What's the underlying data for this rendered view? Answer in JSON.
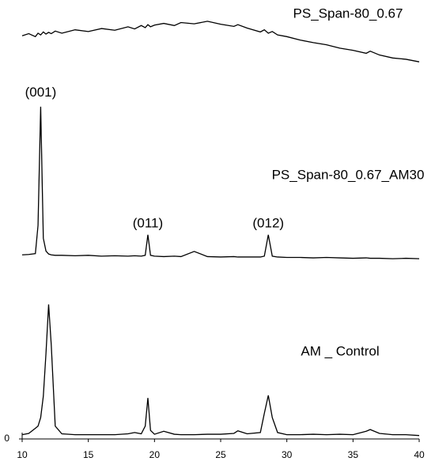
{
  "chart_data": {
    "type": "line",
    "x": [
      10,
      10.5,
      11,
      11.2,
      11.4,
      11.6,
      11.8,
      12,
      12.2,
      12.5,
      13,
      14,
      15,
      16,
      17,
      18,
      18.5,
      19,
      19.3,
      19.5,
      19.7,
      20,
      20.7,
      21.5,
      22,
      23,
      24,
      25,
      26,
      26.3,
      27,
      28,
      28.3,
      28.6,
      28.9,
      29.3,
      30,
      31,
      32,
      33,
      34,
      35,
      36,
      36.3,
      37,
      38,
      39,
      40
    ],
    "series": [
      {
        "name": "PS_Span-80_0.67",
        "color": "#000000",
        "values": [
          94.4,
          94.9,
          94.2,
          95,
          94.6,
          95.3,
          94.8,
          95.2,
          94.9,
          95.5,
          95,
          95.8,
          95.4,
          96.1,
          95.7,
          96.5,
          96,
          96.8,
          96.3,
          97,
          96.5,
          96.9,
          97.3,
          96.8,
          97.5,
          97.2,
          97.8,
          97.1,
          96.6,
          97,
          96.2,
          95.3,
          95.8,
          95,
          95.4,
          94.6,
          94.2,
          93.4,
          92.8,
          92.3,
          91.5,
          91,
          90.3,
          90.8,
          89.9,
          89.2,
          88.9,
          88.3
        ]
      },
      {
        "name": "PS_Span-80_0.67_AM30",
        "color": "#000000",
        "values": [
          43.1,
          43.2,
          43.4,
          50,
          77.8,
          47,
          44,
          43.3,
          43.1,
          43,
          43,
          42.9,
          43,
          42.8,
          42.9,
          42.8,
          42.9,
          42.8,
          43,
          47.8,
          43,
          42.8,
          42.7,
          42.8,
          42.7,
          43.9,
          42.7,
          42.6,
          42.7,
          42.6,
          42.6,
          42.6,
          42.8,
          47.8,
          42.8,
          42.6,
          42.5,
          42.5,
          42.4,
          42.5,
          42.4,
          42.3,
          42.4,
          42.3,
          42.3,
          42.2,
          42.3,
          42.2
        ]
      },
      {
        "name": "AM _ Control",
        "color": "#000000",
        "values": [
          1,
          1.3,
          2.5,
          3,
          5,
          10,
          20,
          31.5,
          22,
          3,
          1.2,
          1,
          1,
          1,
          1,
          1.2,
          1.5,
          1.2,
          3,
          9.6,
          2,
          1.1,
          1.8,
          1.1,
          1,
          1,
          1.1,
          1.1,
          1.3,
          1.9,
          1.2,
          1.5,
          6,
          10.2,
          5,
          1.5,
          1,
          1,
          1.1,
          1,
          1.1,
          1,
          1.8,
          2.2,
          1.3,
          1,
          1,
          0.8
        ]
      }
    ],
    "annotations": [
      {
        "text": "(001)",
        "x": 11.4,
        "y": 81
      },
      {
        "text": "(011)",
        "x": 19.5,
        "y": 50.4
      },
      {
        "text": "(012)",
        "x": 28.6,
        "y": 50.4
      }
    ],
    "xlim": [
      10,
      40
    ],
    "xticks": [
      10,
      15,
      20,
      25,
      30,
      35,
      40
    ],
    "ylim": [
      0,
      100
    ],
    "yticks": [
      0
    ]
  }
}
